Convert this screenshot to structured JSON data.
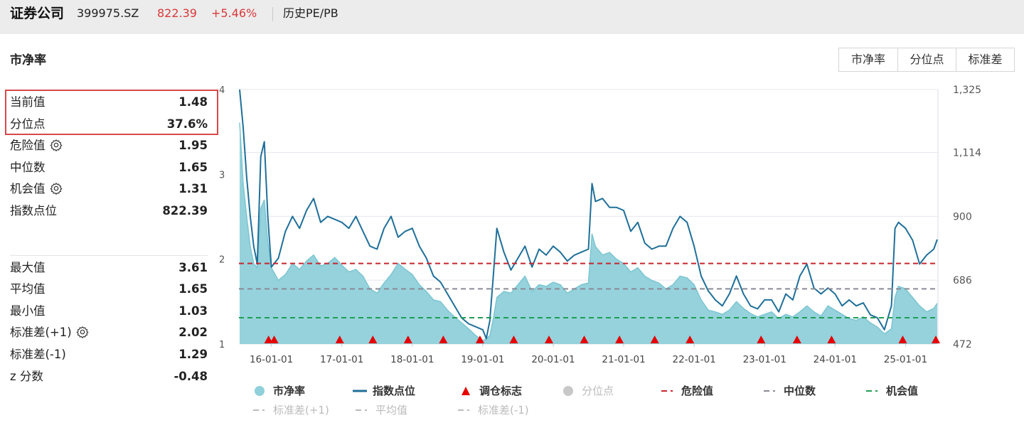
{
  "header": {
    "name": "证券公司",
    "code": "399975.SZ",
    "price": "822.39",
    "change": "+5.46%",
    "history_label": "历史PE/PB"
  },
  "section_title": "市净率",
  "tabs": [
    {
      "label": "市净率",
      "active": true
    },
    {
      "label": "分位点",
      "active": false
    },
    {
      "label": "标准差",
      "active": false
    }
  ],
  "stats_top": [
    {
      "label": "当前值",
      "value": "1.48",
      "gear": false
    },
    {
      "label": "分位点",
      "value": "37.6%",
      "gear": false
    },
    {
      "label": "危险值",
      "value": "1.95",
      "gear": true
    },
    {
      "label": "中位数",
      "value": "1.65",
      "gear": false
    },
    {
      "label": "机会值",
      "value": "1.31",
      "gear": true
    },
    {
      "label": "指数点位",
      "value": "822.39",
      "gear": false
    }
  ],
  "stats_bottom": [
    {
      "label": "最大值",
      "value": "3.61",
      "gear": false
    },
    {
      "label": "平均值",
      "value": "1.65",
      "gear": false
    },
    {
      "label": "最小值",
      "value": "1.03",
      "gear": false
    },
    {
      "label": "标准差(+1)",
      "value": "2.02",
      "gear": true
    },
    {
      "label": "标准差(-1)",
      "value": "1.29",
      "gear": false
    },
    {
      "label": "z 分数",
      "value": "-0.48",
      "gear": false
    }
  ],
  "colors": {
    "accent": "#17a7c4",
    "pb_area": "#8fd0da",
    "pb_line": "#7cc6d2",
    "index_line": "#1f6f99",
    "danger": "#c8262d",
    "median": "#8a8a96",
    "opportunity": "#1f9e52",
    "marker": "#e60000",
    "up": "#d9383a",
    "legend_grey": "#bbbbbb"
  },
  "chart_data": {
    "type": "line",
    "x_tick_labels": [
      "16-01-01",
      "17-01-01",
      "18-01-01",
      "19-01-01",
      "20-01-01",
      "21-01-01",
      "22-01-01",
      "23-01-01",
      "24-01-01",
      "25-01-01"
    ],
    "x_tick_years": [
      2016,
      2017,
      2018,
      2019,
      2020,
      2021,
      2022,
      2023,
      2024,
      2025
    ],
    "x_range": [
      2015.54,
      2025.46
    ],
    "left_axis": {
      "ticks": [
        1,
        2,
        3,
        4
      ],
      "range": [
        1,
        4
      ]
    },
    "right_axis": {
      "ticks": [
        "472",
        "686",
        "900",
        "1,114",
        "1,325"
      ],
      "tick_values": [
        472,
        686,
        900,
        1114,
        1325
      ],
      "range": [
        472,
        1325
      ]
    },
    "x": [
      2015.55,
      2015.6,
      2015.65,
      2015.7,
      2015.75,
      2015.8,
      2015.85,
      2015.9,
      2015.95,
      2016.0,
      2016.1,
      2016.2,
      2016.3,
      2016.4,
      2016.5,
      2016.6,
      2016.7,
      2016.8,
      2016.9,
      2017.0,
      2017.1,
      2017.2,
      2017.3,
      2017.4,
      2017.5,
      2017.6,
      2017.7,
      2017.8,
      2017.9,
      2018.0,
      2018.1,
      2018.2,
      2018.3,
      2018.4,
      2018.5,
      2018.6,
      2018.7,
      2018.8,
      2018.9,
      2019.0,
      2019.05,
      2019.1,
      2019.15,
      2019.2,
      2019.3,
      2019.4,
      2019.5,
      2019.6,
      2019.7,
      2019.8,
      2019.9,
      2020.0,
      2020.1,
      2020.2,
      2020.3,
      2020.4,
      2020.5,
      2020.55,
      2020.6,
      2020.7,
      2020.8,
      2020.9,
      2021.0,
      2021.1,
      2021.2,
      2021.3,
      2021.4,
      2021.5,
      2021.6,
      2021.7,
      2021.8,
      2021.9,
      2022.0,
      2022.1,
      2022.2,
      2022.3,
      2022.4,
      2022.5,
      2022.6,
      2022.7,
      2022.8,
      2022.9,
      2023.0,
      2023.1,
      2023.2,
      2023.3,
      2023.4,
      2023.5,
      2023.6,
      2023.7,
      2023.8,
      2023.9,
      2024.0,
      2024.1,
      2024.2,
      2024.3,
      2024.4,
      2024.5,
      2024.6,
      2024.7,
      2024.75,
      2024.8,
      2024.85,
      2024.9,
      2025.0,
      2025.1,
      2025.2,
      2025.3,
      2025.4,
      2025.45
    ],
    "series": [
      {
        "name": "市净率",
        "axis": "left",
        "style": "area",
        "values": [
          3.61,
          2.9,
          2.5,
          2.15,
          1.95,
          1.9,
          2.6,
          2.7,
          2.2,
          1.9,
          1.75,
          1.82,
          1.95,
          1.88,
          1.98,
          2.05,
          1.92,
          1.95,
          2.02,
          1.93,
          1.85,
          1.88,
          1.8,
          1.65,
          1.6,
          1.72,
          1.82,
          1.95,
          1.88,
          1.82,
          1.7,
          1.62,
          1.52,
          1.5,
          1.4,
          1.32,
          1.25,
          1.18,
          1.1,
          1.04,
          1.06,
          1.1,
          1.3,
          1.55,
          1.62,
          1.6,
          1.7,
          1.8,
          1.62,
          1.7,
          1.68,
          1.73,
          1.7,
          1.6,
          1.65,
          1.7,
          1.72,
          2.3,
          2.15,
          2.05,
          2.08,
          2.0,
          1.95,
          1.85,
          1.9,
          1.8,
          1.75,
          1.72,
          1.65,
          1.7,
          1.8,
          1.78,
          1.7,
          1.52,
          1.4,
          1.38,
          1.35,
          1.4,
          1.5,
          1.42,
          1.36,
          1.32,
          1.35,
          1.38,
          1.3,
          1.35,
          1.32,
          1.38,
          1.45,
          1.38,
          1.33,
          1.45,
          1.4,
          1.35,
          1.3,
          1.28,
          1.32,
          1.25,
          1.2,
          1.12,
          1.15,
          1.18,
          1.55,
          1.68,
          1.65,
          1.55,
          1.45,
          1.38,
          1.42,
          1.48
        ]
      },
      {
        "name": "指数点位",
        "axis": "right",
        "style": "line",
        "values": [
          1325,
          1200,
          1030,
          900,
          800,
          740,
          1100,
          1150,
          900,
          730,
          760,
          850,
          900,
          860,
          920,
          960,
          880,
          900,
          890,
          880,
          860,
          900,
          850,
          800,
          790,
          860,
          900,
          830,
          850,
          860,
          800,
          760,
          700,
          680,
          640,
          600,
          560,
          540,
          530,
          520,
          490,
          550,
          700,
          860,
          780,
          720,
          760,
          800,
          730,
          790,
          770,
          800,
          780,
          750,
          770,
          780,
          790,
          1010,
          950,
          960,
          930,
          930,
          920,
          850,
          880,
          810,
          790,
          800,
          800,
          860,
          900,
          880,
          800,
          700,
          650,
          620,
          600,
          640,
          700,
          640,
          600,
          590,
          620,
          620,
          580,
          640,
          620,
          700,
          740,
          660,
          640,
          660,
          640,
          600,
          620,
          600,
          610,
          570,
          560,
          520,
          560,
          600,
          860,
          880,
          860,
          820,
          740,
          770,
          790,
          822.39
        ]
      }
    ],
    "reference_lines": [
      {
        "name": "危险值",
        "value": 1.95,
        "axis": "left"
      },
      {
        "name": "中位数",
        "value": 1.65,
        "axis": "left"
      },
      {
        "name": "机会值",
        "value": 1.31,
        "axis": "left"
      }
    ],
    "rebalance_markers_x": [
      2015.96,
      2016.04,
      2016.97,
      2017.44,
      2017.94,
      2018.44,
      2018.96,
      2019.44,
      2019.94,
      2020.44,
      2020.94,
      2021.44,
      2021.94,
      2022.95,
      2023.46,
      2023.95,
      2024.96,
      2025.46
    ],
    "legend": [
      {
        "label": "市净率",
        "symbol": "dot",
        "color": "#8fd0da",
        "active": true
      },
      {
        "label": "指数点位",
        "symbol": "line",
        "color": "#1f6f99",
        "active": true
      },
      {
        "label": "调仓标志",
        "symbol": "triangle",
        "color": "#e60000",
        "active": true
      },
      {
        "label": "分位点",
        "symbol": "dot",
        "color": "#c8c8c8",
        "active": false
      },
      {
        "label": "危险值",
        "symbol": "dash",
        "color": "#c8262d",
        "active": true
      },
      {
        "label": "中位数",
        "symbol": "dash",
        "color": "#8a8a96",
        "active": true
      },
      {
        "label": "机会值",
        "symbol": "dash",
        "color": "#1f9e52",
        "active": true
      },
      {
        "label": "标准差(+1)",
        "symbol": "dash",
        "color": "#bbbbbb",
        "active": false
      },
      {
        "label": "平均值",
        "symbol": "dash",
        "color": "#bbbbbb",
        "active": false
      },
      {
        "label": "标准差(-1)",
        "symbol": "dash",
        "color": "#bbbbbb",
        "active": false
      }
    ]
  }
}
